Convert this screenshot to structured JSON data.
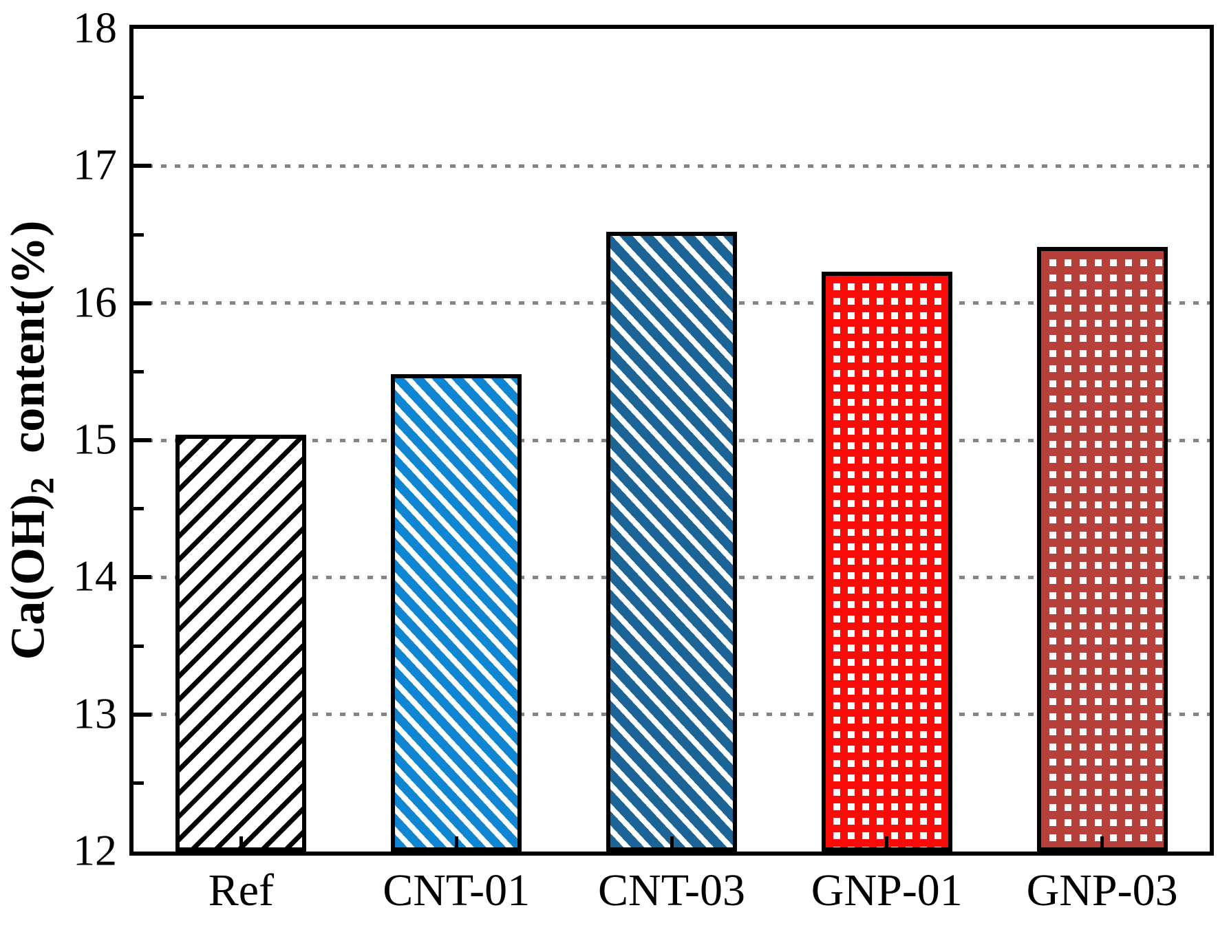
{
  "chart_data": {
    "type": "bar",
    "title": "",
    "xlabel": "",
    "ylabel": {
      "pre": "Ca(OH)",
      "sub": "2",
      "post": "  content(%)"
    },
    "ylabel_plain": "Ca(OH)2 content(%)",
    "ylim": [
      12,
      18
    ],
    "ytick_step": 1,
    "yminor_step": 0.5,
    "yticks": [
      12,
      13,
      14,
      15,
      16,
      17,
      18
    ],
    "categories": [
      "Ref",
      "CNT-01",
      "CNT-03",
      "GNP-01",
      "GNP-03"
    ],
    "values": [
      15.04,
      15.48,
      16.52,
      16.23,
      16.41
    ],
    "bars": [
      {
        "label": "Ref",
        "value": 15.04,
        "color": "#000000",
        "pattern": "diag-up",
        "stripe": [
          7,
          24
        ],
        "fill_bg": "#ffffff"
      },
      {
        "label": "CNT-01",
        "value": 15.48,
        "color": "#1086d3",
        "pattern": "diag-down",
        "stripe": [
          13,
          21
        ],
        "fill_bg": "#ffffff"
      },
      {
        "label": "CNT-03",
        "value": 16.52,
        "color": "#1c6396",
        "pattern": "diag-down",
        "stripe": [
          14,
          22
        ],
        "fill_bg": "#ffffff"
      },
      {
        "label": "GNP-01",
        "value": 16.23,
        "color": "#fb0b07",
        "pattern": "squares",
        "stripe": [
          11,
          21
        ],
        "fill_bg": "#ffffff"
      },
      {
        "label": "GNP-03",
        "value": 16.41,
        "color": "#b5413a",
        "pattern": "squares",
        "stripe": [
          12,
          22
        ],
        "fill_bg": "#ffffff"
      }
    ],
    "grid": {
      "on": true,
      "style": "dotted",
      "color": "#858585",
      "on_values": [
        13,
        14,
        15,
        16,
        17
      ]
    },
    "axis_color": "#000000",
    "legend": null
  }
}
